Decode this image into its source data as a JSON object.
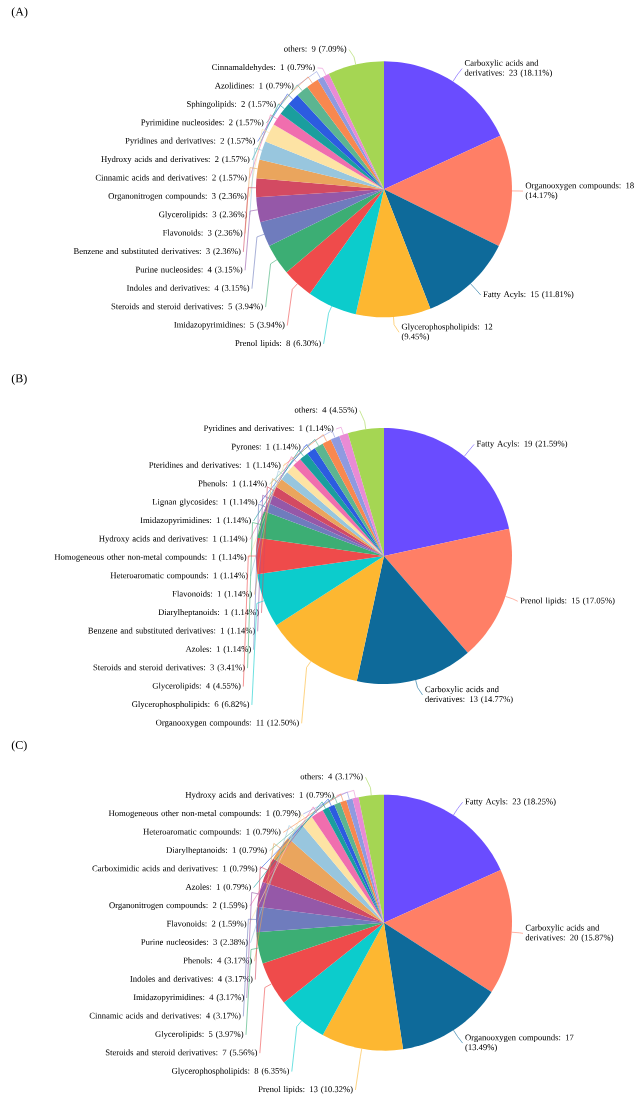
{
  "chart_data": [
    {
      "type": "pie",
      "title": "(A)",
      "categories": [
        "Carboxylic acids and derivatives: 23 (18.11%)",
        "Organooxygen compounds: 18 (14.17%)",
        "Fatty Acyls: 15 (11.81%)",
        "Glycerophospholipids: 12 (9.45%)",
        "Prenol lipids: 8 (6.30%)",
        "Imidazopyrimidines: 5 (3.94%)",
        "Steroids and steroid derivatives: 5 (3.94%)",
        "Indoles and derivatives: 4 (3.15%)",
        "Purine nucleosides: 4 (3.15%)",
        "Benzene and substituted derivatives: 3 (2.36%)",
        "Flavonoids: 3 (2.36%)",
        "Glycerolipids: 3 (2.36%)",
        "Organonitrogen compounds: 3 (2.36%)",
        "Cinnamic acids and derivatives: 2 (1.57%)",
        "Hydroxy acids and derivatives: 2 (1.57%)",
        "Pyridines and derivatives: 2 (1.57%)",
        "Pyrimidine nucleosides: 2 (1.57%)",
        "Sphingolipids: 2 (1.57%)",
        "Azolidines: 1 (0.79%)",
        "Cinnamaldehydes: 1 (0.79%)",
        "others: 9 (7.09%)"
      ],
      "values": [
        23,
        18,
        15,
        12,
        8,
        5,
        5,
        4,
        4,
        3,
        3,
        3,
        3,
        2,
        2,
        2,
        2,
        2,
        1,
        1,
        9
      ],
      "colors": [
        "#6a4cff",
        "#ff7f66",
        "#0e6a9a",
        "#fdb731",
        "#0ccccc",
        "#ef4b4b",
        "#3cae74",
        "#6f7cbd",
        "#9558a8",
        "#d34a62",
        "#eaa55d",
        "#98c6de",
        "#fde3a4",
        "#f06eae",
        "#1a9e9e",
        "#2c5ce0",
        "#5cb591",
        "#f8884f",
        "#8f9ae0",
        "#e98bd5",
        "#a5d653"
      ]
    },
    {
      "type": "pie",
      "title": "(B)",
      "categories": [
        "Fatty Acyls: 19 (21.59%)",
        "Prenol lipids: 15 (17.05%)",
        "Carboxylic acids and derivatives: 13 (14.77%)",
        "Organooxygen compounds: 11 (12.50%)",
        "Glycerophospholipids: 6 (6.82%)",
        "Glycerolipids: 4 (4.55%)",
        "Steroids and steroid derivatives: 3 (3.41%)",
        "Azoles: 1 (1.14%)",
        "Benzene and substituted derivatives: 1 (1.14%)",
        "Diarylheptanoids: 1 (1.14%)",
        "Flavonoids: 1 (1.14%)",
        "Heteroaromatic compounds: 1 (1.14%)",
        "Homogeneous other non-metal compounds: 1 (1.14%)",
        "Hydroxy acids and derivatives: 1 (1.14%)",
        "Imidazopyrimidines: 1 (1.14%)",
        "Lignan glycosides: 1 (1.14%)",
        "Phenols: 1 (1.14%)",
        "Pteridines and derivatives: 1 (1.14%)",
        "Pyrones: 1 (1.14%)",
        "Pyridines and derivatives: 1 (1.14%)",
        "others: 4 (4.55%)"
      ],
      "values": [
        19,
        15,
        13,
        11,
        6,
        4,
        3,
        1,
        1,
        1,
        1,
        1,
        1,
        1,
        1,
        1,
        1,
        1,
        1,
        1,
        4
      ],
      "colors": [
        "#6a4cff",
        "#ff7f66",
        "#0e6a9a",
        "#fdb731",
        "#0ccccc",
        "#ef4b4b",
        "#3cae74",
        "#6f7cbd",
        "#9558a8",
        "#d34a62",
        "#eaa55d",
        "#98c6de",
        "#fde3a4",
        "#f06eae",
        "#1a9e9e",
        "#2c5ce0",
        "#5cb591",
        "#f8884f",
        "#8f9ae0",
        "#e98bd5",
        "#a5d653"
      ]
    },
    {
      "type": "pie",
      "title": "(C)",
      "categories": [
        "Fatty Acyls: 23 (18.25%)",
        "Carboxylic acids and derivatives: 20 (15.87%)",
        "Organooxygen compounds: 17 (13.49%)",
        "Prenol lipids: 13 (10.32%)",
        "Glycerophospholipids: 8 (6.35%)",
        "Steroids and steroid derivatives: 7 (5.56%)",
        "Glycerolipids: 5 (3.97%)",
        "Cinnamic acids and derivatives: 4 (3.17%)",
        "Imidazopyrimidines: 4 (3.17%)",
        "Indoles and derivatives: 4 (3.17%)",
        "Phenols: 4 (3.17%)",
        "Purine nucleosides: 3 (2.38%)",
        "Flavonoids: 2 (1.59%)",
        "Organonitrogen compounds: 2 (1.59%)",
        "Azoles: 1 (0.79%)",
        "Carboximidic acids and derivatives: 1 (0.79%)",
        "Diarylheptanoids: 1 (0.79%)",
        "Heteroaromatic compounds: 1 (0.79%)",
        "Homogeneous other non-metal compounds: 1 (0.79%)",
        "Hydroxy acids and derivatives: 1 (0.79%)",
        "others: 4 (3.17%)"
      ],
      "values": [
        23,
        20,
        17,
        13,
        8,
        7,
        5,
        4,
        4,
        4,
        4,
        3,
        2,
        2,
        1,
        1,
        1,
        1,
        1,
        1,
        4
      ],
      "colors": [
        "#6a4cff",
        "#ff7f66",
        "#0e6a9a",
        "#fdb731",
        "#0ccccc",
        "#ef4b4b",
        "#3cae74",
        "#6f7cbd",
        "#9558a8",
        "#d34a62",
        "#eaa55d",
        "#98c6de",
        "#fde3a4",
        "#f06eae",
        "#1a9e9e",
        "#2c5ce0",
        "#5cb591",
        "#f8884f",
        "#8f9ae0",
        "#e98bd5",
        "#a5d653"
      ]
    }
  ]
}
